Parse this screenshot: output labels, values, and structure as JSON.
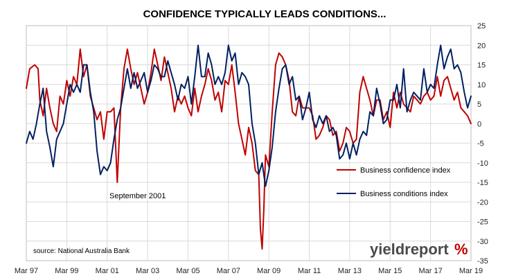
{
  "chart_data": {
    "type": "line",
    "title": "CONFIDENCE TYPICALLY LEADS CONDITIONS...",
    "source": "source: National Australia Bank",
    "annotation": "September 2001",
    "x_tick_labels": [
      "Mar 97",
      "Mar 99",
      "Mar 01",
      "Mar 03",
      "Mar 05",
      "Mar 07",
      "Mar 09",
      "Mar 11",
      "Mar 13",
      "Mar 15",
      "Mar 17",
      "Mar 19"
    ],
    "xlim": [
      "1997-03",
      "2019-03"
    ],
    "ylim": [
      -35,
      25
    ],
    "y_ticks": [
      25,
      20,
      15,
      10,
      5,
      0,
      -5,
      -10,
      -15,
      -20,
      -25,
      -30,
      -35
    ],
    "y_axis_position": "right",
    "grid": true,
    "legend_position": "right-middle",
    "watermark": {
      "text": "yieldreport",
      "symbol": "%"
    },
    "colors": {
      "confidence": "#c00000",
      "conditions": "#002060"
    },
    "series": [
      {
        "name": "Business confidence index",
        "key": "confidence",
        "points": [
          [
            "1997-03",
            9
          ],
          [
            "1997-05",
            14
          ],
          [
            "1997-08",
            15
          ],
          [
            "1997-10",
            14
          ],
          [
            "1997-11",
            6
          ],
          [
            "1998-01",
            2
          ],
          [
            "1998-03",
            9
          ],
          [
            "1998-05",
            4
          ],
          [
            "1998-07",
            0
          ],
          [
            "1998-09",
            -2
          ],
          [
            "1998-11",
            7
          ],
          [
            "1999-01",
            5
          ],
          [
            "1999-03",
            11
          ],
          [
            "1999-05",
            7
          ],
          [
            "1999-07",
            12
          ],
          [
            "1999-09",
            10
          ],
          [
            "1999-11",
            19
          ],
          [
            "2000-01",
            12
          ],
          [
            "2000-03",
            15
          ],
          [
            "2000-05",
            7
          ],
          [
            "2000-07",
            4
          ],
          [
            "2000-09",
            1
          ],
          [
            "2000-11",
            3
          ],
          [
            "2001-01",
            -4
          ],
          [
            "2001-03",
            3
          ],
          [
            "2001-05",
            3
          ],
          [
            "2001-07",
            4
          ],
          [
            "2001-09",
            -15
          ],
          [
            "2001-11",
            4
          ],
          [
            "2002-01",
            14
          ],
          [
            "2002-03",
            19
          ],
          [
            "2002-05",
            14
          ],
          [
            "2002-07",
            10
          ],
          [
            "2002-09",
            13
          ],
          [
            "2002-11",
            9
          ],
          [
            "2003-01",
            5
          ],
          [
            "2003-03",
            8
          ],
          [
            "2003-05",
            13
          ],
          [
            "2003-07",
            19
          ],
          [
            "2003-09",
            15
          ],
          [
            "2003-11",
            11
          ],
          [
            "2004-01",
            17
          ],
          [
            "2004-03",
            13
          ],
          [
            "2004-05",
            9
          ],
          [
            "2004-07",
            3
          ],
          [
            "2004-09",
            7
          ],
          [
            "2004-11",
            5
          ],
          [
            "2005-01",
            7
          ],
          [
            "2005-03",
            4
          ],
          [
            "2005-05",
            2
          ],
          [
            "2005-07",
            9
          ],
          [
            "2005-09",
            3
          ],
          [
            "2005-11",
            7
          ],
          [
            "2006-01",
            10
          ],
          [
            "2006-03",
            14
          ],
          [
            "2006-05",
            11
          ],
          [
            "2006-07",
            6
          ],
          [
            "2006-09",
            8
          ],
          [
            "2006-11",
            3
          ],
          [
            "2007-01",
            11
          ],
          [
            "2007-03",
            10
          ],
          [
            "2007-05",
            15
          ],
          [
            "2007-07",
            8
          ],
          [
            "2007-09",
            0
          ],
          [
            "2007-11",
            -4
          ],
          [
            "2008-01",
            -8
          ],
          [
            "2008-03",
            -1
          ],
          [
            "2008-05",
            -5
          ],
          [
            "2008-07",
            -12
          ],
          [
            "2008-09",
            -13
          ],
          [
            "2008-10",
            -27
          ],
          [
            "2008-11",
            -32
          ],
          [
            "2008-12",
            -22
          ],
          [
            "2009-01",
            -8
          ],
          [
            "2009-03",
            -11
          ],
          [
            "2009-05",
            3
          ],
          [
            "2009-07",
            15
          ],
          [
            "2009-09",
            18
          ],
          [
            "2009-11",
            17
          ],
          [
            "2010-01",
            15
          ],
          [
            "2010-03",
            11
          ],
          [
            "2010-05",
            3
          ],
          [
            "2010-07",
            2
          ],
          [
            "2010-09",
            7
          ],
          [
            "2010-11",
            4
          ],
          [
            "2011-01",
            4
          ],
          [
            "2011-03",
            4
          ],
          [
            "2011-05",
            2
          ],
          [
            "2011-07",
            -4
          ],
          [
            "2011-09",
            -3
          ],
          [
            "2011-11",
            -1
          ],
          [
            "2012-01",
            2
          ],
          [
            "2012-03",
            1
          ],
          [
            "2012-05",
            -3
          ],
          [
            "2012-07",
            -2
          ],
          [
            "2012-09",
            -7
          ],
          [
            "2012-11",
            -5
          ],
          [
            "2013-01",
            -1
          ],
          [
            "2013-03",
            -2
          ],
          [
            "2013-05",
            -5
          ],
          [
            "2013-07",
            -4
          ],
          [
            "2013-09",
            8
          ],
          [
            "2013-11",
            12
          ],
          [
            "2014-01",
            9
          ],
          [
            "2014-03",
            6
          ],
          [
            "2014-05",
            2
          ],
          [
            "2014-07",
            6
          ],
          [
            "2014-09",
            6
          ],
          [
            "2014-11",
            1
          ],
          [
            "2015-01",
            3
          ],
          [
            "2015-03",
            -1
          ],
          [
            "2015-05",
            8
          ],
          [
            "2015-07",
            4
          ],
          [
            "2015-09",
            8
          ],
          [
            "2015-11",
            5
          ],
          [
            "2016-01",
            4
          ],
          [
            "2016-03",
            3
          ],
          [
            "2016-05",
            7
          ],
          [
            "2016-07",
            6
          ],
          [
            "2016-09",
            5
          ],
          [
            "2016-11",
            7
          ],
          [
            "2017-01",
            8
          ],
          [
            "2017-03",
            6
          ],
          [
            "2017-05",
            7
          ],
          [
            "2017-07",
            12
          ],
          [
            "2017-09",
            7
          ],
          [
            "2017-11",
            11
          ],
          [
            "2018-01",
            12
          ],
          [
            "2018-03",
            9
          ],
          [
            "2018-05",
            6
          ],
          [
            "2018-07",
            8
          ],
          [
            "2018-09",
            4
          ],
          [
            "2018-11",
            3
          ],
          [
            "2019-01",
            2
          ],
          [
            "2019-03",
            0
          ]
        ]
      },
      {
        "name": "Business conditions index",
        "key": "conditions",
        "points": [
          [
            "1997-03",
            -5
          ],
          [
            "1997-05",
            -2
          ],
          [
            "1997-07",
            -4
          ],
          [
            "1997-09",
            0
          ],
          [
            "1997-11",
            5
          ],
          [
            "1998-01",
            9
          ],
          [
            "1998-03",
            -2
          ],
          [
            "1998-05",
            -6
          ],
          [
            "1998-07",
            -11
          ],
          [
            "1998-09",
            -4
          ],
          [
            "1998-11",
            -2
          ],
          [
            "1999-01",
            0
          ],
          [
            "1999-03",
            5
          ],
          [
            "1999-05",
            10
          ],
          [
            "1999-07",
            8
          ],
          [
            "1999-09",
            10
          ],
          [
            "1999-11",
            8
          ],
          [
            "2000-01",
            15
          ],
          [
            "2000-03",
            15
          ],
          [
            "2000-05",
            8
          ],
          [
            "2000-07",
            3
          ],
          [
            "2000-09",
            -7
          ],
          [
            "2000-11",
            -13
          ],
          [
            "2001-01",
            -11
          ],
          [
            "2001-03",
            -12
          ],
          [
            "2001-05",
            -10
          ],
          [
            "2001-07",
            -4
          ],
          [
            "2001-09",
            1
          ],
          [
            "2001-11",
            4
          ],
          [
            "2002-01",
            9
          ],
          [
            "2002-03",
            14
          ],
          [
            "2002-05",
            9
          ],
          [
            "2002-07",
            13
          ],
          [
            "2002-09",
            9
          ],
          [
            "2002-11",
            11
          ],
          [
            "2003-01",
            13
          ],
          [
            "2003-03",
            8
          ],
          [
            "2003-05",
            11
          ],
          [
            "2003-07",
            15
          ],
          [
            "2003-09",
            14
          ],
          [
            "2003-11",
            12
          ],
          [
            "2004-01",
            12
          ],
          [
            "2004-03",
            16
          ],
          [
            "2004-05",
            13
          ],
          [
            "2004-07",
            10
          ],
          [
            "2004-09",
            6
          ],
          [
            "2004-11",
            10
          ],
          [
            "2005-01",
            9
          ],
          [
            "2005-03",
            12
          ],
          [
            "2005-05",
            5
          ],
          [
            "2005-07",
            12
          ],
          [
            "2005-09",
            20
          ],
          [
            "2005-11",
            12
          ],
          [
            "2006-01",
            12
          ],
          [
            "2006-03",
            18
          ],
          [
            "2006-05",
            15
          ],
          [
            "2006-07",
            10
          ],
          [
            "2006-09",
            12
          ],
          [
            "2006-11",
            10
          ],
          [
            "2007-01",
            13
          ],
          [
            "2007-03",
            20
          ],
          [
            "2007-05",
            16
          ],
          [
            "2007-07",
            18
          ],
          [
            "2007-09",
            10
          ],
          [
            "2007-11",
            13
          ],
          [
            "2008-01",
            12
          ],
          [
            "2008-03",
            10
          ],
          [
            "2008-05",
            0
          ],
          [
            "2008-07",
            -5
          ],
          [
            "2008-09",
            -13
          ],
          [
            "2008-11",
            -10
          ],
          [
            "2009-01",
            -16
          ],
          [
            "2009-03",
            -12
          ],
          [
            "2009-05",
            -6
          ],
          [
            "2009-07",
            3
          ],
          [
            "2009-09",
            9
          ],
          [
            "2009-11",
            14
          ],
          [
            "2010-01",
            15
          ],
          [
            "2010-03",
            10
          ],
          [
            "2010-05",
            12
          ],
          [
            "2010-07",
            6
          ],
          [
            "2010-09",
            7
          ],
          [
            "2010-11",
            1
          ],
          [
            "2011-01",
            4
          ],
          [
            "2011-03",
            8
          ],
          [
            "2011-05",
            1
          ],
          [
            "2011-07",
            -1
          ],
          [
            "2011-09",
            2
          ],
          [
            "2011-11",
            0
          ],
          [
            "2012-01",
            2
          ],
          [
            "2012-03",
            -2
          ],
          [
            "2012-05",
            -1
          ],
          [
            "2012-07",
            -3
          ],
          [
            "2012-09",
            -9
          ],
          [
            "2012-11",
            -8
          ],
          [
            "2013-01",
            -5
          ],
          [
            "2013-03",
            -9
          ],
          [
            "2013-05",
            -5
          ],
          [
            "2013-07",
            -8
          ],
          [
            "2013-09",
            -4
          ],
          [
            "2013-11",
            -2
          ],
          [
            "2014-01",
            -3
          ],
          [
            "2014-03",
            3
          ],
          [
            "2014-05",
            2
          ],
          [
            "2014-07",
            9
          ],
          [
            "2014-09",
            5
          ],
          [
            "2014-11",
            0
          ],
          [
            "2015-01",
            1
          ],
          [
            "2015-03",
            6
          ],
          [
            "2015-05",
            6
          ],
          [
            "2015-07",
            10
          ],
          [
            "2015-09",
            4
          ],
          [
            "2015-11",
            14
          ],
          [
            "2016-01",
            3
          ],
          [
            "2016-03",
            6
          ],
          [
            "2016-05",
            8
          ],
          [
            "2016-07",
            7
          ],
          [
            "2016-09",
            6
          ],
          [
            "2016-11",
            14
          ],
          [
            "2017-01",
            8
          ],
          [
            "2017-03",
            10
          ],
          [
            "2017-05",
            9
          ],
          [
            "2017-07",
            15
          ],
          [
            "2017-09",
            20
          ],
          [
            "2017-11",
            14
          ],
          [
            "2018-01",
            17
          ],
          [
            "2018-03",
            19
          ],
          [
            "2018-05",
            14
          ],
          [
            "2018-07",
            15
          ],
          [
            "2018-09",
            13
          ],
          [
            "2018-11",
            8
          ],
          [
            "2019-01",
            4
          ],
          [
            "2019-03",
            7
          ]
        ]
      }
    ]
  }
}
